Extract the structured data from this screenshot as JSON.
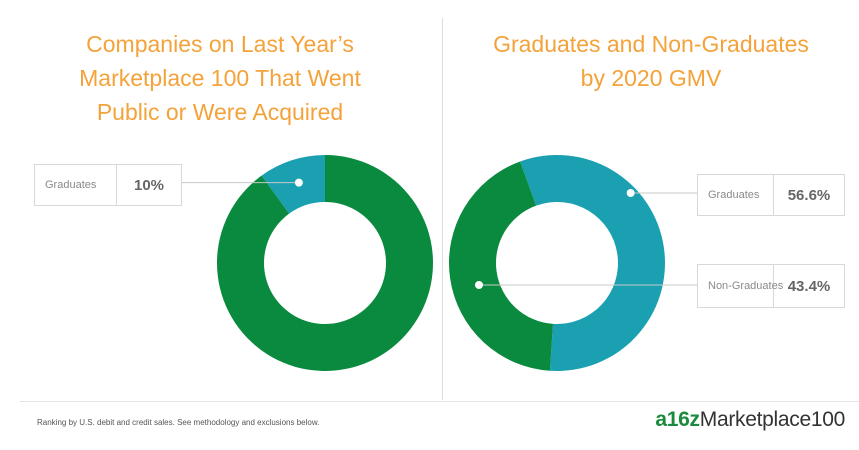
{
  "chart_data": [
    {
      "type": "pie",
      "title": "Companies on Last Year’s Marketplace 100 That Went Public or Were Acquired",
      "labels": [
        "Graduates",
        ""
      ],
      "values": [
        10,
        90
      ],
      "value_labels": [
        "10%"
      ],
      "colors": [
        "#1ba0b2",
        "#0a8a3e"
      ]
    },
    {
      "type": "pie",
      "title": "Graduates and Non-Graduates by 2020 GMV",
      "labels": [
        "Graduates",
        "Non-Graduates"
      ],
      "values": [
        56.6,
        43.4
      ],
      "value_labels": [
        "56.6%",
        "43.4%"
      ],
      "colors": [
        "#1ba0b2",
        "#0a8a3e"
      ]
    }
  ],
  "titles": {
    "left_lines": [
      "Companies on Last Year’s",
      "Marketplace 100 That Went",
      "Public or Were Acquired"
    ],
    "right_lines": [
      "Graduates and Non-Graduates",
      "by 2020 GMV"
    ]
  },
  "labels": {
    "left_graduates": "Graduates",
    "left_graduates_value": "10%",
    "right_graduates": "Graduates",
    "right_graduates_value": "56.6%",
    "right_non_graduates_lines": [
      "Non-",
      "Graduates"
    ],
    "right_non_graduates_value": "43.4%"
  },
  "footer": {
    "note": "Ranking by U.S. debit and credit sales. See methodology and exclusions below.",
    "brand_prefix": "a16z",
    "brand_suffix": "Marketplace100"
  }
}
